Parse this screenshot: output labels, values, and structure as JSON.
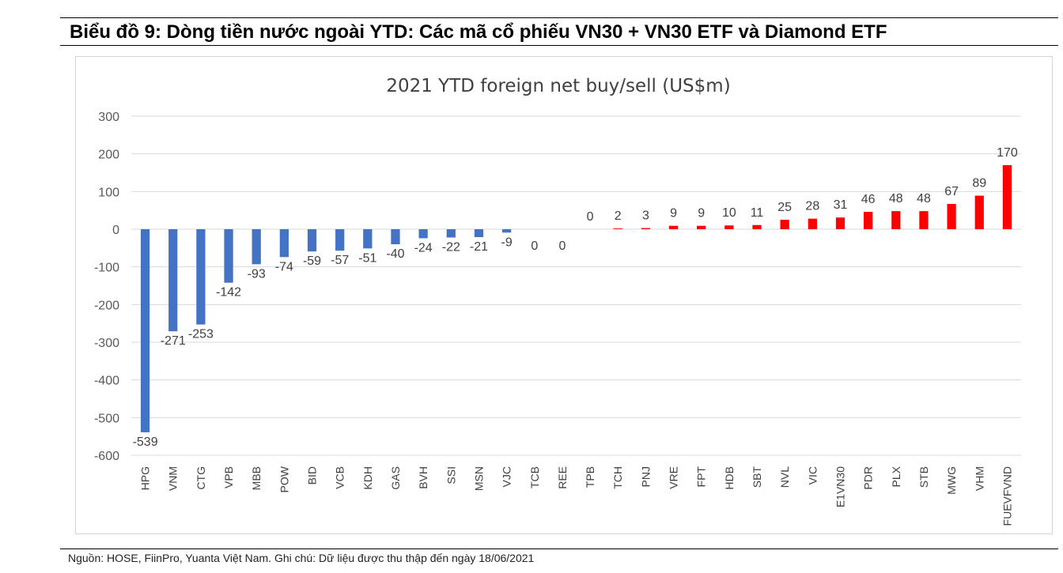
{
  "page": {
    "title": "Biểu đồ 9: Dòng tiền nước ngoài YTD:  Các mã cổ phiếu VN30 + VN30 ETF và Diamond ETF",
    "source": "Nguồn: HOSE, FiinPro, Yuanta Việt Nam. Ghi chú: Dữ liệu được thu thập đến ngày 18/06/2021"
  },
  "chart_data": {
    "type": "bar",
    "title": "2021 YTD foreign net buy/sell (US$m)",
    "xlabel": "",
    "ylabel": "",
    "ylim": [
      -600,
      300
    ],
    "yticks": [
      300,
      200,
      100,
      0,
      -100,
      -200,
      -300,
      -400,
      -500,
      -600
    ],
    "grid": true,
    "legend": "none",
    "colors": {
      "negative": "#4472C4",
      "positive": "#FF0000"
    },
    "categories": [
      "HPG",
      "VNM",
      "CTG",
      "VPB",
      "MBB",
      "POW",
      "BID",
      "VCB",
      "KDH",
      "GAS",
      "BVH",
      "SSI",
      "MSN",
      "VJC",
      "TCB",
      "REE",
      "TPB",
      "TCH",
      "PNJ",
      "VRE",
      "FPT",
      "HDB",
      "SBT",
      "NVL",
      "VIC",
      "E1VN30",
      "PDR",
      "PLX",
      "STB",
      "MWG",
      "VHM",
      "FUEVFVND"
    ],
    "values": [
      -539,
      -271,
      -253,
      -142,
      -93,
      -74,
      -59,
      -57,
      -51,
      -40,
      -24,
      -22,
      -21,
      -9,
      0,
      0,
      0,
      2,
      3,
      9,
      9,
      10,
      11,
      25,
      28,
      31,
      46,
      48,
      48,
      67,
      89,
      170
    ]
  }
}
